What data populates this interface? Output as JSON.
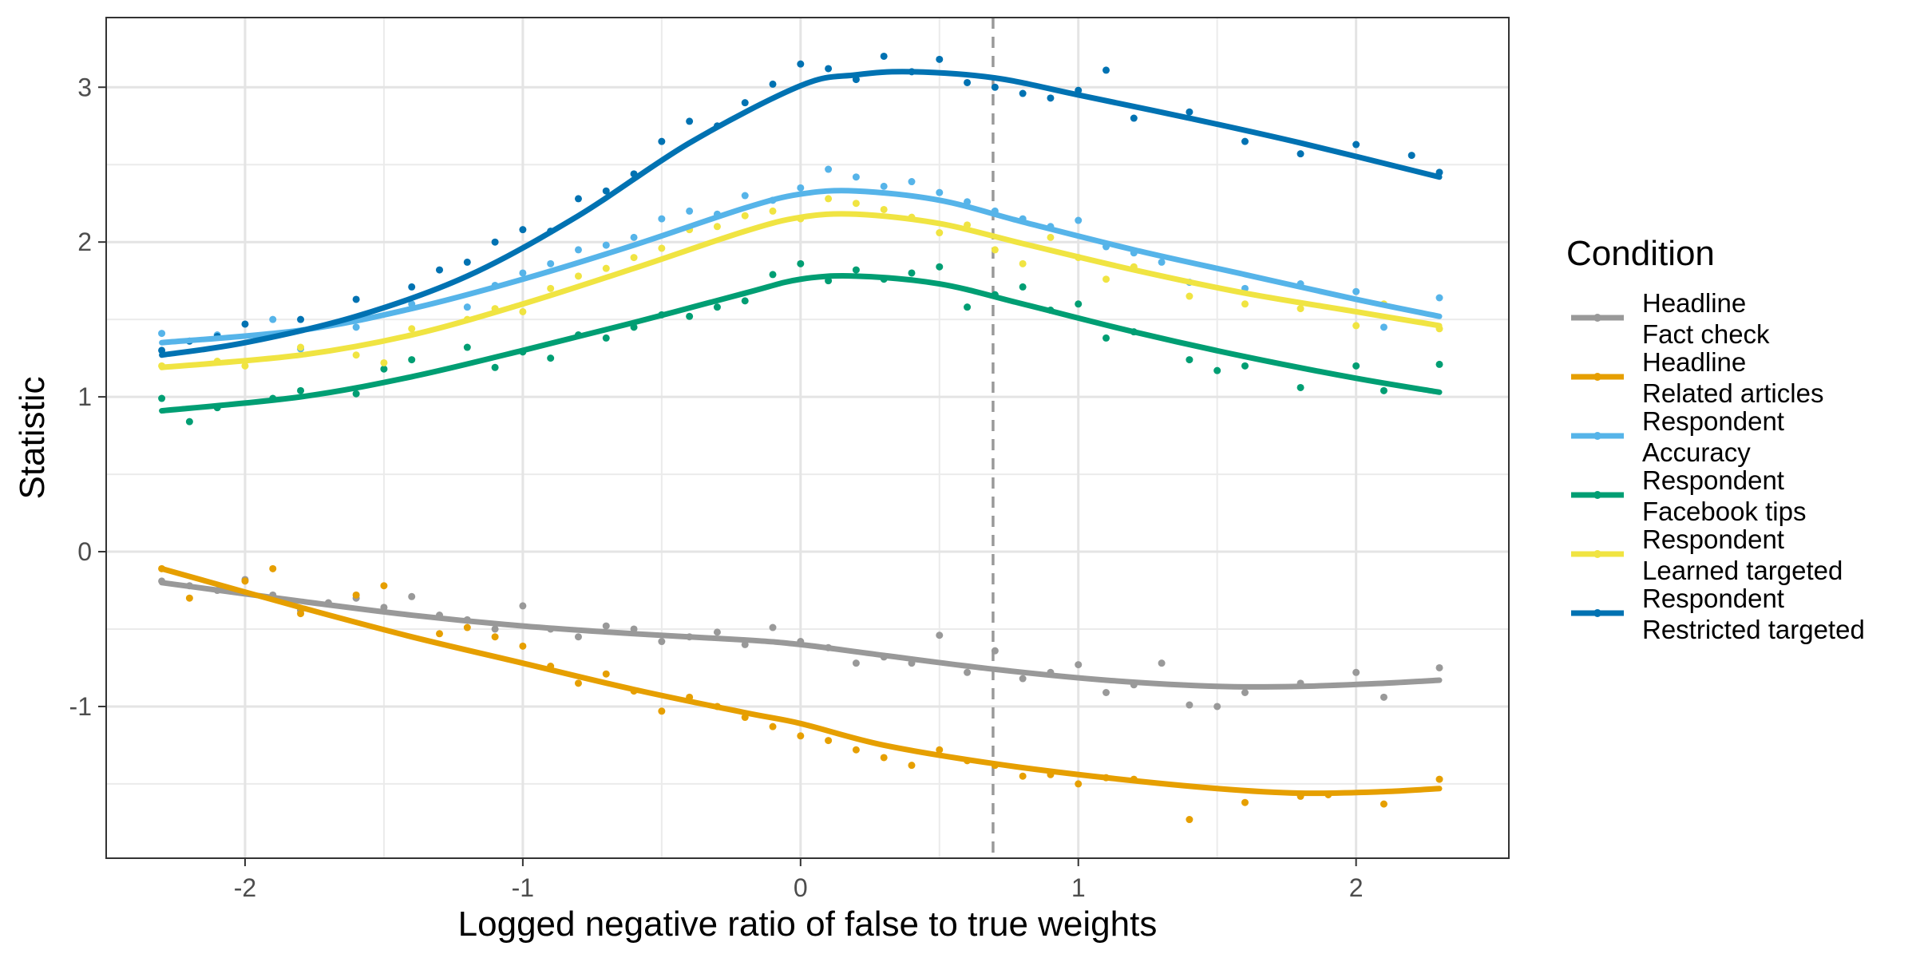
{
  "chart_data": {
    "type": "scatter",
    "title": "",
    "xlabel": "Logged negative ratio of false to true weights",
    "ylabel": "Statistic",
    "xlim": [
      -2.5,
      2.55
    ],
    "ylim": [
      -1.98,
      3.45
    ],
    "x_ticks": [
      -2,
      -1,
      0,
      1,
      2
    ],
    "x_tick_labels": [
      "-2",
      "-1",
      "0",
      "1",
      "2"
    ],
    "y_ticks": [
      -1,
      0,
      1,
      2,
      3
    ],
    "y_tick_labels": [
      "-1",
      "0",
      "1",
      "2",
      "3"
    ],
    "grid": true,
    "reference_line": {
      "x": 0.693,
      "style": "dashed",
      "color": "#999999"
    },
    "legend": {
      "title": "Condition",
      "position": "right"
    },
    "series": [
      {
        "name": "Headline\nFact check",
        "name_lines": [
          "Headline",
          "Fact check"
        ],
        "color": "#999999",
        "trend_x": [
          -2.3,
          -1.8,
          -1.4,
          -1,
          -0.6,
          -0.2,
          0,
          0.3,
          0.7,
          1.1,
          1.5,
          1.8,
          2.1,
          2.3
        ],
        "trend_y": [
          -0.2,
          -0.32,
          -0.41,
          -0.48,
          -0.53,
          -0.57,
          -0.6,
          -0.67,
          -0.76,
          -0.83,
          -0.87,
          -0.87,
          -0.85,
          -0.83
        ],
        "points_x": [
          -2.3,
          -2.2,
          -2.1,
          -2,
          -1.9,
          -1.8,
          -1.7,
          -1.6,
          -1.5,
          -1.4,
          -1.3,
          -1.2,
          -1.1,
          -1,
          -0.9,
          -0.8,
          -0.7,
          -0.6,
          -0.5,
          -0.4,
          -0.3,
          -0.2,
          -0.1,
          0,
          0.1,
          0.2,
          0.3,
          0.4,
          0.5,
          0.6,
          0.7,
          0.8,
          0.9,
          1,
          1.1,
          1.2,
          1.3,
          1.4,
          1.5,
          1.6,
          1.8,
          2,
          2.1,
          2.3
        ],
        "points_y": [
          -0.19,
          -0.22,
          -0.25,
          -0.18,
          -0.28,
          -0.38,
          -0.33,
          -0.3,
          -0.36,
          -0.29,
          -0.41,
          -0.44,
          -0.5,
          -0.35,
          -0.5,
          -0.55,
          -0.48,
          -0.5,
          -0.58,
          -0.55,
          -0.52,
          -0.6,
          -0.49,
          -0.58,
          -0.62,
          -0.72,
          -0.68,
          -0.72,
          -0.54,
          -0.78,
          -0.64,
          -0.82,
          -0.78,
          -0.73,
          -0.91,
          -0.86,
          -0.72,
          -0.99,
          -1.0,
          -0.91,
          -0.85,
          -0.78,
          -0.94,
          -0.75
        ]
      },
      {
        "name": "Headline\nRelated articles",
        "name_lines": [
          "Headline",
          "Related articles"
        ],
        "color": "#E69F00",
        "trend_x": [
          -2.3,
          -1.8,
          -1.4,
          -1,
          -0.6,
          -0.2,
          0,
          0.3,
          0.7,
          1.1,
          1.5,
          1.8,
          2.1,
          2.3
        ],
        "trend_y": [
          -0.11,
          -0.36,
          -0.55,
          -0.72,
          -0.89,
          -1.04,
          -1.11,
          -1.25,
          -1.37,
          -1.46,
          -1.53,
          -1.56,
          -1.55,
          -1.53
        ],
        "points_x": [
          -2.3,
          -2.2,
          -2,
          -1.9,
          -1.8,
          -1.6,
          -1.5,
          -1.3,
          -1.2,
          -1.1,
          -1,
          -0.9,
          -0.8,
          -0.7,
          -0.6,
          -0.5,
          -0.4,
          -0.3,
          -0.2,
          -0.1,
          0,
          0.1,
          0.2,
          0.3,
          0.4,
          0.5,
          0.6,
          0.7,
          0.8,
          0.9,
          1,
          1.1,
          1.2,
          1.4,
          1.6,
          1.8,
          1.9,
          2.1,
          2.3
        ],
        "points_y": [
          -0.11,
          -0.3,
          -0.19,
          -0.11,
          -0.4,
          -0.28,
          -0.22,
          -0.53,
          -0.49,
          -0.55,
          -0.61,
          -0.74,
          -0.85,
          -0.79,
          -0.9,
          -1.03,
          -0.94,
          -1.0,
          -1.07,
          -1.13,
          -1.19,
          -1.22,
          -1.28,
          -1.33,
          -1.38,
          -1.28,
          -1.35,
          -1.38,
          -1.45,
          -1.44,
          -1.5,
          -1.46,
          -1.47,
          -1.73,
          -1.62,
          -1.58,
          -1.57,
          -1.63,
          -1.47
        ]
      },
      {
        "name": "Respondent\nAccuracy",
        "name_lines": [
          "Respondent",
          "Accuracy"
        ],
        "color": "#56B4E9",
        "trend_x": [
          -2.3,
          -1.8,
          -1.4,
          -1,
          -0.6,
          -0.2,
          0,
          0.2,
          0.5,
          0.8,
          1.2,
          1.6,
          2,
          2.3
        ],
        "trend_y": [
          1.35,
          1.43,
          1.57,
          1.76,
          1.98,
          2.22,
          2.31,
          2.33,
          2.27,
          2.13,
          1.95,
          1.79,
          1.63,
          1.52
        ],
        "points_x": [
          -2.3,
          -2.1,
          -1.9,
          -1.8,
          -1.6,
          -1.4,
          -1.2,
          -1.1,
          -1,
          -0.9,
          -0.8,
          -0.7,
          -0.6,
          -0.5,
          -0.4,
          -0.3,
          -0.2,
          -0.1,
          0,
          0.1,
          0.2,
          0.3,
          0.4,
          0.5,
          0.6,
          0.7,
          0.8,
          0.9,
          1,
          1.1,
          1.2,
          1.3,
          1.4,
          1.6,
          1.8,
          2,
          2.1,
          2.3
        ],
        "points_y": [
          1.41,
          1.4,
          1.5,
          1.31,
          1.45,
          1.6,
          1.58,
          1.72,
          1.8,
          1.86,
          1.95,
          1.98,
          2.03,
          2.15,
          2.2,
          2.18,
          2.3,
          2.27,
          2.35,
          2.47,
          2.42,
          2.36,
          2.39,
          2.32,
          2.26,
          2.2,
          2.15,
          2.1,
          2.14,
          1.97,
          1.93,
          1.87,
          1.74,
          1.7,
          1.73,
          1.68,
          1.45,
          1.64
        ]
      },
      {
        "name": "Respondent\nFacebook tips",
        "name_lines": [
          "Respondent",
          "Facebook tips"
        ],
        "color": "#009E73",
        "trend_x": [
          -2.3,
          -1.8,
          -1.4,
          -1,
          -0.6,
          -0.2,
          0,
          0.2,
          0.5,
          0.8,
          1.2,
          1.6,
          2,
          2.3
        ],
        "trend_y": [
          0.91,
          1.0,
          1.13,
          1.3,
          1.48,
          1.67,
          1.76,
          1.78,
          1.73,
          1.6,
          1.42,
          1.26,
          1.12,
          1.03
        ],
        "points_x": [
          -2.3,
          -2.2,
          -2.1,
          -1.9,
          -1.8,
          -1.6,
          -1.5,
          -1.4,
          -1.2,
          -1.1,
          -1,
          -0.9,
          -0.8,
          -0.7,
          -0.6,
          -0.5,
          -0.4,
          -0.3,
          -0.2,
          -0.1,
          0,
          0.1,
          0.2,
          0.3,
          0.4,
          0.5,
          0.6,
          0.7,
          0.8,
          0.9,
          1,
          1.1,
          1.2,
          1.4,
          1.5,
          1.6,
          1.8,
          2,
          2.1,
          2.3
        ],
        "points_y": [
          0.99,
          0.84,
          0.93,
          0.99,
          1.04,
          1.02,
          1.18,
          1.24,
          1.32,
          1.19,
          1.29,
          1.25,
          1.4,
          1.38,
          1.45,
          1.53,
          1.52,
          1.58,
          1.62,
          1.79,
          1.86,
          1.75,
          1.82,
          1.76,
          1.8,
          1.84,
          1.58,
          1.66,
          1.71,
          1.56,
          1.6,
          1.38,
          1.42,
          1.24,
          1.17,
          1.2,
          1.06,
          1.2,
          1.04,
          1.21
        ]
      },
      {
        "name": "Respondent\nLearned targeted",
        "name_lines": [
          "Respondent",
          "Learned targeted"
        ],
        "color": "#F0E442",
        "trend_x": [
          -2.3,
          -1.8,
          -1.4,
          -1,
          -0.6,
          -0.2,
          0,
          0.2,
          0.5,
          0.8,
          1.2,
          1.6,
          2,
          2.3
        ],
        "trend_y": [
          1.19,
          1.27,
          1.4,
          1.6,
          1.83,
          2.07,
          2.16,
          2.18,
          2.12,
          1.99,
          1.82,
          1.67,
          1.55,
          1.46
        ],
        "points_x": [
          -2.3,
          -2.1,
          -2,
          -1.8,
          -1.6,
          -1.5,
          -1.4,
          -1.2,
          -1.1,
          -1,
          -0.9,
          -0.8,
          -0.7,
          -0.6,
          -0.5,
          -0.4,
          -0.3,
          -0.2,
          -0.1,
          0,
          0.1,
          0.2,
          0.3,
          0.4,
          0.5,
          0.6,
          0.7,
          0.8,
          0.9,
          1,
          1.1,
          1.2,
          1.4,
          1.6,
          1.8,
          2,
          2.1,
          2.3
        ],
        "points_y": [
          1.2,
          1.23,
          1.2,
          1.32,
          1.27,
          1.22,
          1.44,
          1.5,
          1.57,
          1.55,
          1.7,
          1.78,
          1.83,
          1.9,
          1.96,
          2.08,
          2.1,
          2.17,
          2.2,
          2.15,
          2.28,
          2.25,
          2.21,
          2.16,
          2.06,
          2.11,
          1.95,
          1.86,
          2.03,
          1.9,
          1.76,
          1.84,
          1.65,
          1.6,
          1.57,
          1.46,
          1.6,
          1.44
        ]
      },
      {
        "name": "Respondent\nRestricted targeted",
        "name_lines": [
          "Respondent",
          "Restricted targeted"
        ],
        "color": "#0072B2",
        "trend_x": [
          -2.3,
          -2,
          -1.6,
          -1.2,
          -0.8,
          -0.4,
          0,
          0.2,
          0.4,
          0.7,
          1,
          1.4,
          1.8,
          2.3
        ],
        "trend_y": [
          1.27,
          1.35,
          1.52,
          1.78,
          2.17,
          2.64,
          3.01,
          3.08,
          3.1,
          3.06,
          2.95,
          2.8,
          2.64,
          2.42
        ],
        "points_x": [
          -2.3,
          -2.2,
          -2.1,
          -2,
          -1.8,
          -1.6,
          -1.4,
          -1.3,
          -1.2,
          -1.1,
          -1,
          -0.9,
          -0.8,
          -0.7,
          -0.6,
          -0.5,
          -0.4,
          -0.3,
          -0.2,
          -0.1,
          0,
          0.1,
          0.2,
          0.3,
          0.4,
          0.5,
          0.6,
          0.7,
          0.8,
          0.9,
          1,
          1.1,
          1.2,
          1.4,
          1.6,
          1.8,
          2,
          2.2,
          2.3
        ],
        "points_y": [
          1.3,
          1.36,
          1.39,
          1.47,
          1.5,
          1.63,
          1.71,
          1.82,
          1.87,
          2.0,
          2.08,
          2.07,
          2.28,
          2.33,
          2.44,
          2.65,
          2.78,
          2.75,
          2.9,
          3.02,
          3.15,
          3.12,
          3.05,
          3.2,
          3.1,
          3.18,
          3.03,
          3.0,
          2.96,
          2.93,
          2.98,
          3.11,
          2.8,
          2.84,
          2.65,
          2.57,
          2.63,
          2.56,
          2.45
        ]
      }
    ]
  }
}
